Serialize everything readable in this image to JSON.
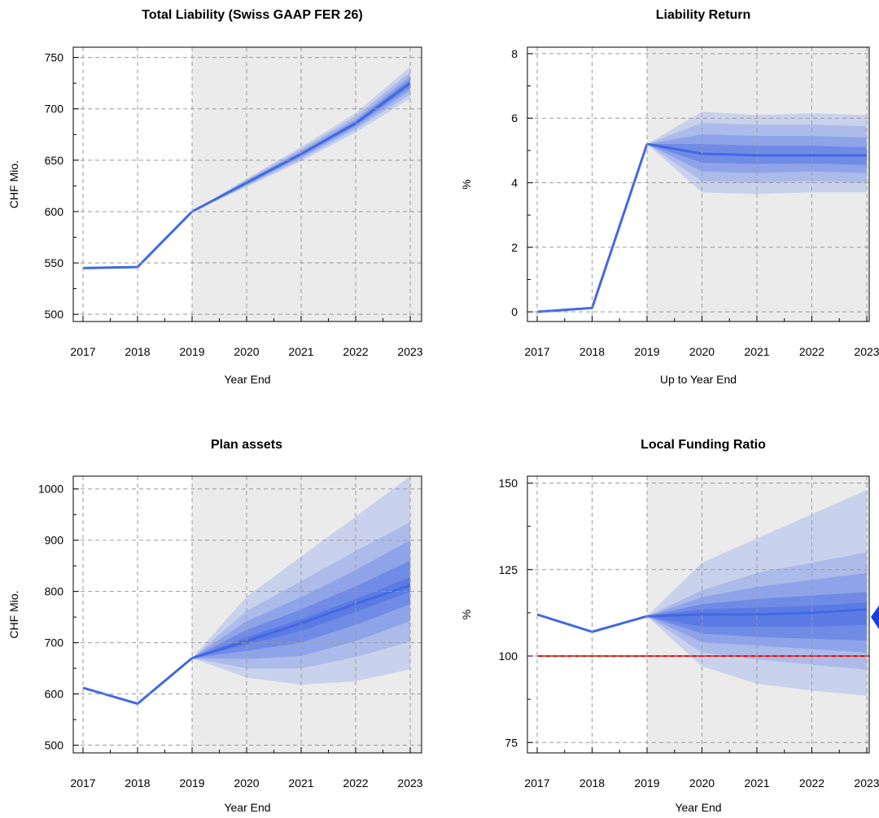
{
  "chart_data": [
    {
      "type": "line",
      "title": "Total Liability (Swiss GAAP FER 26)",
      "xlabel": "Year End",
      "ylabel": "CHF Mio.",
      "x": [
        2017,
        2018,
        2019,
        2020,
        2021,
        2022,
        2023
      ],
      "xticks": [
        "2017",
        "2018",
        "2019",
        "2020",
        "2021",
        "2022",
        "2023"
      ],
      "yticks": [
        500,
        550,
        600,
        650,
        700,
        750
      ],
      "ylim": [
        493,
        760
      ],
      "forecast_start": 2019,
      "grid": true,
      "series": [
        {
          "values": [
            545,
            546,
            600,
            null,
            null,
            null,
            null
          ]
        },
        {
          "values": [
            null,
            null,
            600,
            628,
            656,
            686,
            725
          ]
        }
      ],
      "fan_bands": [
        {
          "lower": [
            600,
            624,
            649,
            677,
            710
          ],
          "upper": [
            600,
            632,
            663,
            696,
            741
          ]
        },
        {
          "lower": [
            600,
            625,
            651,
            680,
            714
          ],
          "upper": [
            600,
            631,
            661,
            693,
            736
          ]
        },
        {
          "lower": [
            600,
            626,
            653,
            682,
            718
          ],
          "upper": [
            600,
            630,
            659,
            690,
            732
          ]
        },
        {
          "lower": [
            600,
            627,
            655,
            684,
            721
          ],
          "upper": [
            600,
            629,
            657,
            688,
            729
          ]
        }
      ],
      "colors": {
        "line": "#4169e1",
        "forecast_bg": "#ebebeb"
      }
    },
    {
      "type": "line",
      "title": "Liability Return",
      "xlabel": "Up to Year End",
      "ylabel": "%",
      "x": [
        2017,
        2018,
        2019,
        2020,
        2021,
        2022,
        2023
      ],
      "xticks": [
        "2017",
        "2018",
        "2019",
        "2020",
        "2021",
        "2022",
        "2023"
      ],
      "yticks": [
        0,
        2,
        4,
        6,
        8
      ],
      "ylim": [
        -0.3,
        8.2
      ],
      "forecast_start": 2019,
      "grid": true,
      "series": [
        {
          "values": [
            0.0,
            0.12,
            5.2,
            null,
            null,
            null,
            null
          ]
        },
        {
          "values": [
            null,
            null,
            5.2,
            4.9,
            4.85,
            4.85,
            4.85
          ]
        }
      ],
      "fan_bands": [
        {
          "lower": [
            5.2,
            3.7,
            3.65,
            3.7,
            3.7
          ],
          "upper": [
            5.2,
            6.2,
            6.1,
            6.15,
            6.1
          ]
        },
        {
          "lower": [
            5.2,
            4.05,
            4.0,
            4.05,
            4.0
          ],
          "upper": [
            5.2,
            5.85,
            5.8,
            5.8,
            5.75
          ]
        },
        {
          "lower": [
            5.2,
            4.35,
            4.3,
            4.35,
            4.3
          ],
          "upper": [
            5.2,
            5.5,
            5.45,
            5.45,
            5.4
          ]
        },
        {
          "lower": [
            5.2,
            4.62,
            4.58,
            4.6,
            4.55
          ],
          "upper": [
            5.2,
            5.2,
            5.15,
            5.15,
            5.1
          ]
        }
      ],
      "colors": {
        "line": "#4169e1",
        "forecast_bg": "#ebebeb"
      }
    },
    {
      "type": "line",
      "title": "Plan assets",
      "xlabel": "Year End",
      "ylabel": "CHF Mio.",
      "x": [
        2017,
        2018,
        2019,
        2020,
        2021,
        2022,
        2023
      ],
      "xticks": [
        "2017",
        "2018",
        "2019",
        "2020",
        "2021",
        "2022",
        "2023"
      ],
      "yticks": [
        500,
        600,
        700,
        800,
        900,
        1000
      ],
      "ylim": [
        485,
        1025
      ],
      "forecast_start": 2019,
      "grid": true,
      "series": [
        {
          "values": [
            612,
            581,
            670,
            null,
            null,
            null,
            null
          ]
        },
        {
          "values": [
            null,
            null,
            670,
            703,
            738,
            776,
            812
          ]
        }
      ],
      "fan_bands": [
        {
          "lower": [
            670,
            632,
            618,
            625,
            648
          ],
          "upper": [
            670,
            790,
            868,
            946,
            1025
          ]
        },
        {
          "lower": [
            670,
            650,
            650,
            672,
            702
          ],
          "upper": [
            670,
            762,
            820,
            879,
            935
          ]
        },
        {
          "lower": [
            670,
            668,
            674,
            703,
            742
          ],
          "upper": [
            670,
            742,
            789,
            842,
            900
          ]
        },
        {
          "lower": [
            670,
            684,
            700,
            735,
            775
          ],
          "upper": [
            670,
            725,
            765,
            810,
            860
          ]
        },
        {
          "lower": [
            670,
            696,
            723,
            760,
            800
          ],
          "upper": [
            670,
            711,
            746,
            785,
            828
          ]
        }
      ],
      "colors": {
        "line": "#4169e1",
        "forecast_bg": "#ebebeb"
      }
    },
    {
      "type": "line",
      "title": "Local Funding Ratio",
      "xlabel": "Year End",
      "ylabel": "%",
      "x": [
        2017,
        2018,
        2019,
        2020,
        2021,
        2022,
        2023
      ],
      "xticks": [
        "2017",
        "2018",
        "2019",
        "2020",
        "2021",
        "2022",
        "2023"
      ],
      "yticks": [
        75,
        100,
        125,
        150
      ],
      "ylim": [
        72,
        152
      ],
      "forecast_start": 2019,
      "grid": true,
      "reference_line": {
        "y": 100,
        "color": "#ff0000"
      },
      "series": [
        {
          "values": [
            112,
            107,
            111.5,
            null,
            null,
            null,
            null
          ]
        },
        {
          "values": [
            null,
            null,
            111.5,
            112,
            112,
            112.5,
            113.5
          ]
        }
      ],
      "fan_bands": [
        {
          "lower": [
            111.5,
            97,
            92,
            90,
            88.5
          ],
          "upper": [
            111.5,
            127,
            134,
            141,
            148
          ]
        },
        {
          "lower": [
            111.5,
            101,
            99,
            97.5,
            96
          ],
          "upper": [
            111.5,
            119,
            124,
            127,
            130
          ]
        },
        {
          "lower": [
            111.5,
            104,
            103,
            102,
            101
          ],
          "upper": [
            111.5,
            117,
            120,
            122,
            124
          ]
        },
        {
          "lower": [
            111.5,
            106.5,
            105.5,
            105,
            104.5
          ],
          "upper": [
            111.5,
            115,
            116.5,
            117.5,
            118.5
          ]
        },
        {
          "lower": [
            111.5,
            108.5,
            108.5,
            108.5,
            109
          ],
          "upper": [
            111.5,
            113.5,
            114,
            114.5,
            115.5
          ]
        }
      ],
      "colors": {
        "line": "#4169e1",
        "forecast_bg": "#ebebeb"
      }
    }
  ],
  "styles": {
    "band_colors": [
      "#c9d2ec",
      "#acbbea",
      "#8fa4e8",
      "#708be6",
      "#5b7ae4"
    ],
    "grid_color": "#9a9a9a",
    "axis_color": "#000000"
  }
}
